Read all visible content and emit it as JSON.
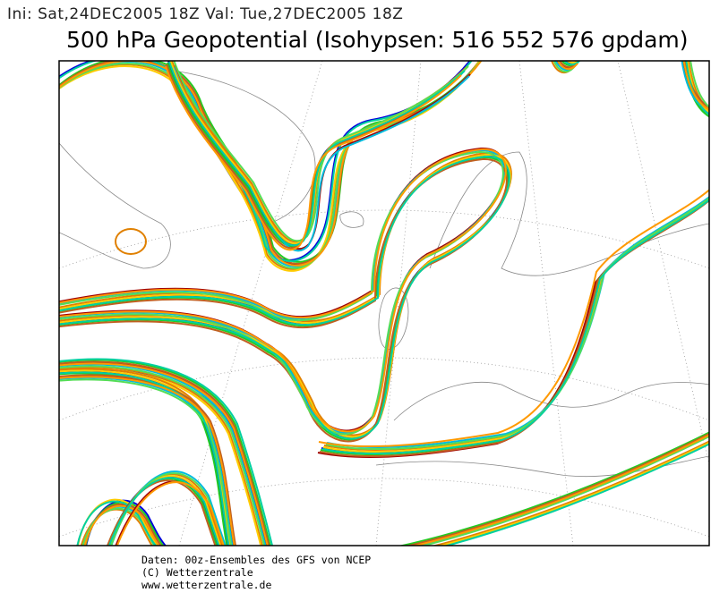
{
  "header": {
    "info": "Ini: Sat,24DEC2005 18Z Val: Tue,27DEC2005 18Z",
    "title": "500 hPa Geopotential (Isohypsen: 516 552 576 gpdam)"
  },
  "footer": {
    "lines": [
      "Daten: 00z-Ensembles des GFS von NCEP",
      "(C) Wetterzentrale",
      "www.wetterzentrale.de"
    ]
  }
}
